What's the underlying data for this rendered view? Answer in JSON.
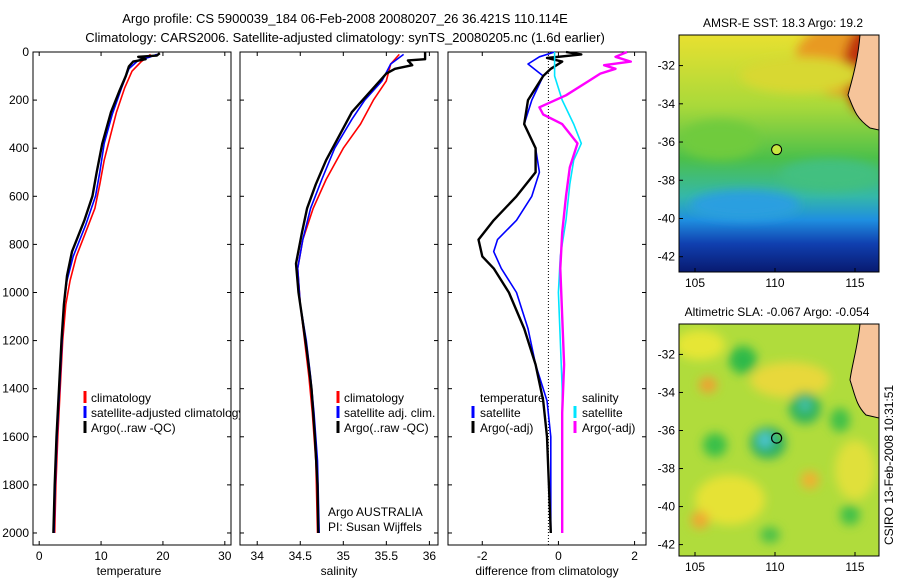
{
  "title": {
    "line1": "Argo profile: CS 5900039_184 06-Feb-2008 20080207_26 36.421S 110.114E",
    "line2": "Climatology: CARS2006. Satellite-adjusted climatology: synTS_20080205.nc (1.6d earlier)"
  },
  "y_ticks": [
    "0",
    "200",
    "400",
    "600",
    "800",
    "1000",
    "1200",
    "1400",
    "1600",
    "1800",
    "2000"
  ],
  "colors": {
    "climatology": "#ff0000",
    "satellite": "#0000ff",
    "argo": "#000000",
    "sal_satellite": "#00e5ff",
    "sal_argo": "#ff00ff"
  },
  "chart_data": [
    {
      "type": "line",
      "xlabel": "temperature",
      "xlim": [
        -1,
        31
      ],
      "ylim": [
        2050,
        0
      ],
      "xticks": [
        "0",
        "10",
        "20",
        "30"
      ],
      "legend": [
        "climatology",
        "satellite-adjusted climatology",
        "Argo(..raw -QC)"
      ],
      "series": [
        {
          "name": "climatology",
          "color": "#ff0000",
          "points": [
            [
              18,
              10
            ],
            [
              16.5,
              40
            ],
            [
              15,
              80
            ],
            [
              13.8,
              150
            ],
            [
              12.5,
              250
            ],
            [
              11.5,
              350
            ],
            [
              10.5,
              450
            ],
            [
              9.8,
              550
            ],
            [
              9,
              650
            ],
            [
              7.5,
              750
            ],
            [
              6,
              850
            ],
            [
              5,
              950
            ],
            [
              4.3,
              1050
            ],
            [
              3.8,
              1200
            ],
            [
              3.4,
              1400
            ],
            [
              3,
              1600
            ],
            [
              2.7,
              1800
            ],
            [
              2.5,
              2000
            ]
          ]
        },
        {
          "name": "satellite-adjusted climatology",
          "color": "#0000ff",
          "points": [
            [
              19,
              10
            ],
            [
              18,
              20
            ],
            [
              16,
              35
            ],
            [
              14.5,
              70
            ],
            [
              13.3,
              150
            ],
            [
              11.8,
              260
            ],
            [
              10.5,
              380
            ],
            [
              9.8,
              500
            ],
            [
              9.1,
              600
            ],
            [
              7.5,
              720
            ],
            [
              5.5,
              850
            ],
            [
              4.5,
              950
            ],
            [
              4,
              1050
            ],
            [
              3.7,
              1200
            ],
            [
              3.3,
              1400
            ],
            [
              2.9,
              1600
            ],
            [
              2.6,
              1800
            ],
            [
              2.4,
              2000
            ]
          ]
        },
        {
          "name": "Argo(..raw -QC)",
          "color": "#000000",
          "points": [
            [
              19.5,
              5
            ],
            [
              19,
              15
            ],
            [
              16,
              20
            ],
            [
              17.2,
              30
            ],
            [
              15.2,
              40
            ],
            [
              14.5,
              60
            ],
            [
              14,
              100
            ],
            [
              13,
              160
            ],
            [
              11.6,
              250
            ],
            [
              10.2,
              380
            ],
            [
              9.3,
              500
            ],
            [
              8.6,
              600
            ],
            [
              7.3,
              700
            ],
            [
              5.3,
              830
            ],
            [
              4.5,
              930
            ],
            [
              4,
              1050
            ],
            [
              3.6,
              1200
            ],
            [
              3.2,
              1400
            ],
            [
              2.8,
              1600
            ],
            [
              2.5,
              1800
            ],
            [
              2.3,
              2000
            ]
          ]
        }
      ]
    },
    {
      "type": "line",
      "xlabel": "salinity",
      "xlim": [
        33.8,
        36.1
      ],
      "ylim": [
        2050,
        0
      ],
      "xticks": [
        "34",
        "34.5",
        "35",
        "35.5",
        "36"
      ],
      "legend": [
        "climatology",
        "satellite adj. clim.",
        "Argo(..raw -QC)"
      ],
      "annotation_lines": [
        "Argo AUSTRALIA",
        "PI: Susan Wijffels"
      ],
      "series": [
        {
          "name": "climatology",
          "color": "#ff0000",
          "points": [
            [
              35.65,
              10
            ],
            [
              35.55,
              50
            ],
            [
              35.5,
              120
            ],
            [
              35.35,
              200
            ],
            [
              35.2,
              300
            ],
            [
              35,
              400
            ],
            [
              34.8,
              530
            ],
            [
              34.65,
              650
            ],
            [
              34.53,
              780
            ],
            [
              34.47,
              900
            ],
            [
              34.5,
              1050
            ],
            [
              34.55,
              1200
            ],
            [
              34.6,
              1350
            ],
            [
              34.64,
              1500
            ],
            [
              34.68,
              1700
            ],
            [
              34.7,
              2000
            ]
          ]
        },
        {
          "name": "satellite adj. clim.",
          "color": "#0000ff",
          "points": [
            [
              35.7,
              10
            ],
            [
              35.55,
              50
            ],
            [
              35.45,
              120
            ],
            [
              35.25,
              200
            ],
            [
              35.1,
              280
            ],
            [
              34.9,
              400
            ],
            [
              34.75,
              530
            ],
            [
              34.62,
              650
            ],
            [
              34.53,
              780
            ],
            [
              34.47,
              900
            ],
            [
              34.5,
              1050
            ],
            [
              34.57,
              1200
            ],
            [
              34.62,
              1350
            ],
            [
              34.66,
              1500
            ],
            [
              34.7,
              1700
            ],
            [
              34.72,
              2000
            ]
          ]
        },
        {
          "name": "Argo(..raw -QC)",
          "color": "#000000",
          "points": [
            [
              35.95,
              0
            ],
            [
              35.95,
              30
            ],
            [
              35.75,
              35
            ],
            [
              35.8,
              55
            ],
            [
              35.6,
              70
            ],
            [
              35.5,
              90
            ],
            [
              35.35,
              150
            ],
            [
              35.1,
              250
            ],
            [
              34.95,
              350
            ],
            [
              34.8,
              450
            ],
            [
              34.68,
              550
            ],
            [
              34.58,
              650
            ],
            [
              34.52,
              750
            ],
            [
              34.45,
              880
            ],
            [
              34.48,
              1000
            ],
            [
              34.52,
              1100
            ],
            [
              34.58,
              1250
            ],
            [
              34.63,
              1400
            ],
            [
              34.67,
              1600
            ],
            [
              34.7,
              1800
            ],
            [
              34.71,
              2000
            ]
          ]
        }
      ]
    },
    {
      "type": "line",
      "xlabel": "difference from climatology",
      "xlim": [
        -2.9,
        2.3
      ],
      "ylim": [
        2050,
        0
      ],
      "xticks": [
        "-2",
        "0",
        "2"
      ],
      "legend_left_title": "temperature",
      "legend_left": [
        "satellite",
        "Argo(-adj)"
      ],
      "legend_right_title": "salinity",
      "legend_right": [
        "satellite",
        "Argo(-adj)"
      ],
      "series": [
        {
          "name": "satellite",
          "color": "#0000ff",
          "points": [
            [
              -0.1,
              0
            ],
            [
              -0.5,
              20
            ],
            [
              -0.8,
              50
            ],
            [
              -0.4,
              100
            ],
            [
              -0.7,
              200
            ],
            [
              -0.9,
              300
            ],
            [
              -0.6,
              400
            ],
            [
              -0.5,
              500
            ],
            [
              -0.7,
              600
            ],
            [
              -1.1,
              700
            ],
            [
              -1.6,
              780
            ],
            [
              -1.7,
              830
            ],
            [
              -1.5,
              900
            ],
            [
              -1.1,
              1000
            ],
            [
              -0.8,
              1150
            ],
            [
              -0.6,
              1300
            ],
            [
              -0.3,
              1450
            ],
            [
              -0.2,
              1600
            ],
            [
              -0.2,
              2000
            ]
          ]
        },
        {
          "name": "Argo(-adj)",
          "color": "#000000",
          "points": [
            [
              0.2,
              0
            ],
            [
              0.6,
              10
            ],
            [
              -0.3,
              25
            ],
            [
              0.1,
              40
            ],
            [
              -0.2,
              70
            ],
            [
              -0.4,
              100
            ],
            [
              -0.8,
              200
            ],
            [
              -0.9,
              300
            ],
            [
              -0.6,
              400
            ],
            [
              -0.6,
              500
            ],
            [
              -1.1,
              600
            ],
            [
              -1.7,
              700
            ],
            [
              -2.1,
              780
            ],
            [
              -2,
              850
            ],
            [
              -1.7,
              900
            ],
            [
              -1.3,
              1000
            ],
            [
              -0.9,
              1150
            ],
            [
              -0.6,
              1300
            ],
            [
              -0.4,
              1450
            ],
            [
              -0.3,
              1600
            ],
            [
              -0.25,
              1800
            ],
            [
              -0.2,
              2000
            ]
          ]
        },
        {
          "name": "satellite",
          "color": "#00e5ff",
          "points": [
            [
              -0.1,
              0
            ],
            [
              -0.1,
              100
            ],
            [
              0.1,
              200
            ],
            [
              0.4,
              300
            ],
            [
              0.6,
              380
            ],
            [
              0.4,
              450
            ],
            [
              0.3,
              550
            ],
            [
              0.2,
              700
            ],
            [
              0.05,
              850
            ],
            [
              0,
              1000
            ],
            [
              0.05,
              1200
            ],
            [
              0.1,
              1400
            ],
            [
              0.1,
              2000
            ]
          ]
        },
        {
          "name": "Argo(-adj)",
          "color": "#ff00ff",
          "points": [
            [
              1.8,
              0
            ],
            [
              1.5,
              20
            ],
            [
              1.9,
              40
            ],
            [
              1.2,
              55
            ],
            [
              1.5,
              70
            ],
            [
              1.1,
              90
            ],
            [
              0.8,
              120
            ],
            [
              0.2,
              180
            ],
            [
              -0.5,
              230
            ],
            [
              -0.4,
              260
            ],
            [
              0.1,
              300
            ],
            [
              0.5,
              380
            ],
            [
              0.3,
              480
            ],
            [
              0.2,
              600
            ],
            [
              0.1,
              750
            ],
            [
              0.05,
              900
            ],
            [
              0.1,
              1100
            ],
            [
              0.15,
              1300
            ],
            [
              0.1,
              1500
            ],
            [
              0.1,
              2000
            ]
          ]
        }
      ]
    },
    {
      "type": "heatmap",
      "title": "AMSR-E SST: 18.3 Argo: 19.2",
      "xlim": [
        104,
        116.5
      ],
      "ylim": [
        -42.8,
        -30.4
      ],
      "xticks": [
        "105",
        "110",
        "115"
      ],
      "yticks": [
        "-32",
        "-34",
        "-36",
        "-38",
        "-40",
        "-42"
      ],
      "marker": {
        "lon": 110.1,
        "lat": -36.4
      }
    },
    {
      "type": "heatmap",
      "title": "Altimetric SLA: -0.067 Argo: -0.054",
      "xlim": [
        104,
        116.5
      ],
      "ylim": [
        -42.6,
        -30.4
      ],
      "xticks": [
        "105",
        "110",
        "115"
      ],
      "yticks": [
        "-32",
        "-34",
        "-36",
        "-38",
        "-40",
        "-42"
      ],
      "marker": {
        "lon": 110.1,
        "lat": -36.4
      }
    }
  ],
  "side_text": "CSIRO 13-Feb-2008 10:31:51"
}
